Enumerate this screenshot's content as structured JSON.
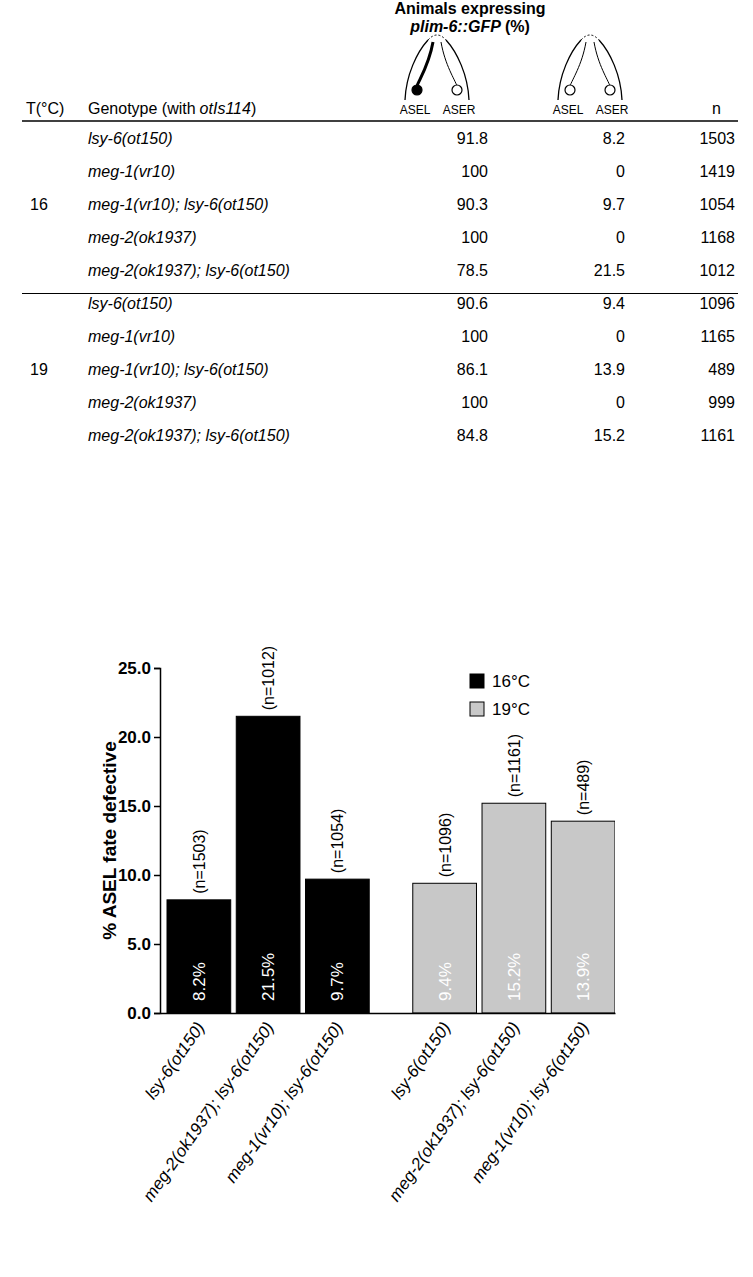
{
  "table": {
    "title": [
      "Animals expressing",
      "plim-6::GFP",
      "(%)"
    ],
    "columns": {
      "temperature": "T(°C)",
      "genotype": [
        "Genotype (with",
        "otIs114",
        ")"
      ],
      "icon_labels": [
        [
          "ASEL",
          "ASER"
        ],
        [
          "ASEL",
          "ASER"
        ]
      ],
      "n": "n"
    },
    "groups": [
      {
        "temperature": 16,
        "rows": [
          {
            "genotype": "lsy-6(ot150)",
            "asel_on": 91.8,
            "asel_off": 8.2,
            "n": 1503
          },
          {
            "genotype": "meg-1(vr10)",
            "asel_on": 100,
            "asel_off": 0,
            "n": 1419
          },
          {
            "genotype": "meg-1(vr10); lsy-6(ot150)",
            "asel_on": 90.3,
            "asel_off": 9.7,
            "n": 1054
          },
          {
            "genotype": "meg-2(ok1937)",
            "asel_on": 100,
            "asel_off": 0,
            "n": 1168
          },
          {
            "genotype": "meg-2(ok1937); lsy-6(ot150)",
            "asel_on": 78.5,
            "asel_off": 21.5,
            "n": 1012
          }
        ]
      },
      {
        "temperature": 19,
        "rows": [
          {
            "genotype": "lsy-6(ot150)",
            "asel_on": 90.6,
            "asel_off": 9.4,
            "n": 1096
          },
          {
            "genotype": "meg-1(vr10)",
            "asel_on": 100,
            "asel_off": 0,
            "n": 1165
          },
          {
            "genotype": "meg-1(vr10); lsy-6(ot150)",
            "asel_on": 86.1,
            "asel_off": 13.9,
            "n": 489
          },
          {
            "genotype": "meg-2(ok1937)",
            "asel_on": 100,
            "asel_off": 0,
            "n": 999
          },
          {
            "genotype": "meg-2(ok1937); lsy-6(ot150)",
            "asel_on": 84.8,
            "asel_off": 15.2,
            "n": 1161
          }
        ]
      }
    ]
  },
  "chart_data": {
    "type": "bar",
    "y_label": "% ASEL fate defective",
    "categories": [
      "lsy-6(ot150)",
      "meg-2(ok1937); lsy-6(ot150)",
      "meg-1(vr10); lsy-6(ot150)",
      "lsy-6(ot150)",
      "meg-2(ok1937); lsy-6(ot150)",
      "meg-1(vr10); lsy-6(ot150)"
    ],
    "series": [
      {
        "name": "16°C",
        "color": "#000000",
        "values": [
          8.2,
          21.5,
          9.7,
          null,
          null,
          null
        ],
        "value_labels": [
          "8.2%",
          "21.5%",
          "9.7%",
          null,
          null,
          null
        ],
        "n_labels": [
          "(n=1503)",
          "(n=1012)",
          "(n=1054)",
          null,
          null,
          null
        ]
      },
      {
        "name": "19°C",
        "color": "#c8c8c8",
        "values": [
          null,
          null,
          null,
          9.4,
          15.2,
          13.9
        ],
        "value_labels": [
          null,
          null,
          null,
          "9.4%",
          "15.2%",
          "13.9%"
        ],
        "n_labels": [
          null,
          null,
          null,
          "(n=1096)",
          "(n=1161)",
          "(n=489)"
        ]
      }
    ],
    "ylim": [
      0,
      25
    ],
    "yticks": [
      {
        "value": 0,
        "label": "0.0"
      },
      {
        "value": 5,
        "label": "5.0"
      },
      {
        "value": 10,
        "label": "10.0"
      },
      {
        "value": 15,
        "label": "15.0"
      },
      {
        "value": 20,
        "label": "20.0"
      },
      {
        "value": 25,
        "label": "25.0"
      }
    ],
    "grid": false,
    "legend": "top-right",
    "data_labels": true
  }
}
